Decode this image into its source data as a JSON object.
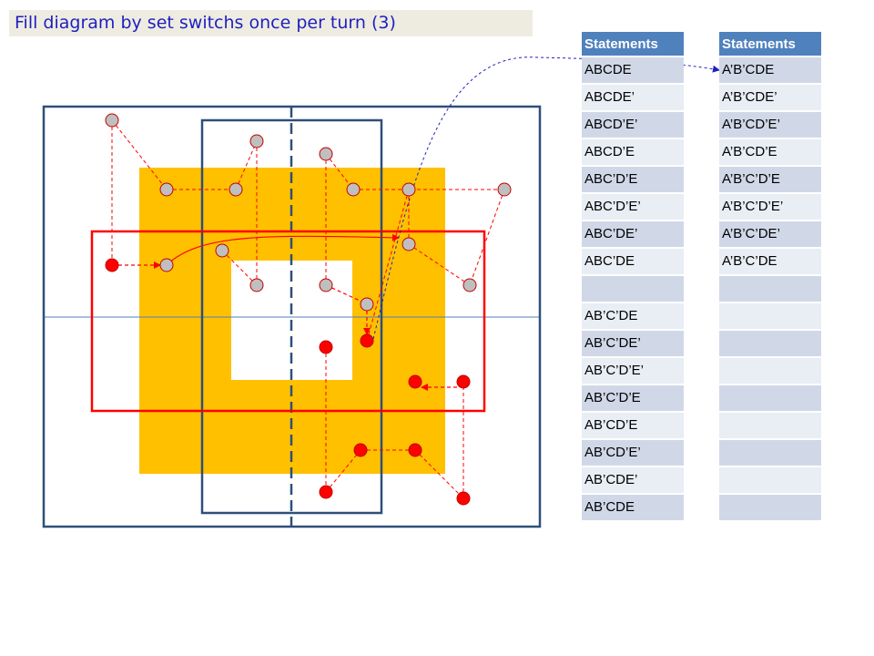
{
  "title": "Fill diagram by set switchs once per turn (3)",
  "colors": {
    "title_text": "#1f1fbf",
    "title_bg": "#eeece1",
    "outer_box": "#2e4f7a",
    "set_fill": "#ffc000",
    "red": "#ff0000",
    "gray_dot": "#bfbfbf",
    "table_header": "#4f81bd",
    "table_row_dark": "#d0d8e8",
    "table_row_light": "#e9edf4"
  },
  "table_left": {
    "header": "Statements",
    "rows": [
      "ABCDE",
      "ABCDE’",
      "ABCD’E’",
      "ABCD’E",
      "ABC’D’E",
      "ABC’D’E’",
      "ABC’DE’",
      "ABC’DE",
      "",
      "AB’C’DE",
      "AB’C’DE’",
      "AB’C’D’E’",
      "AB’C’D’E",
      "AB’CD’E",
      "AB’CD’E’",
      "AB’CDE’",
      "AB’CDE"
    ]
  },
  "table_right": {
    "header": "Statements",
    "rows": [
      "A’B’CDE",
      "A’B’CDE’",
      "A’B’CD’E’",
      "A’B’CD’E",
      "A’B’C’D’E",
      "A’B’C’D’E’",
      "A’B’C’DE’",
      "A’B’C’DE",
      "",
      "",
      "",
      "",
      "",
      "",
      "",
      "",
      ""
    ]
  }
}
